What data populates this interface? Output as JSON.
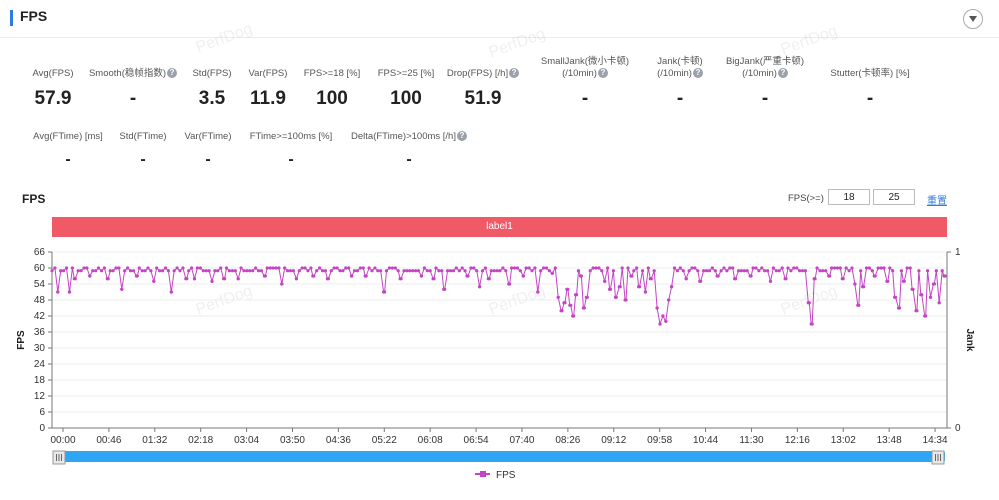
{
  "header": {
    "title": "FPS"
  },
  "stats_row1": [
    {
      "label": "Avg(FPS)",
      "value": "57.9",
      "help": false
    },
    {
      "label": "Smooth(稳帧指数)",
      "value": "-",
      "help": true
    },
    {
      "label": "Std(FPS)",
      "value": "3.5",
      "help": false
    },
    {
      "label": "Var(FPS)",
      "value": "11.9",
      "help": false
    },
    {
      "label": "FPS>=18 [%]",
      "value": "100",
      "help": false
    },
    {
      "label": "FPS>=25 [%]",
      "value": "100",
      "help": false
    },
    {
      "label": "Drop(FPS) [/h]",
      "value": "51.9",
      "help": true
    },
    {
      "label": "SmallJank(微小卡顿)",
      "label2": "(/10min)",
      "value": "-",
      "help": true
    },
    {
      "label": "Jank(卡顿)",
      "label2": "(/10min)",
      "value": "-",
      "help": true
    },
    {
      "label": "BigJank(严重卡顿)",
      "label2": "(/10min)",
      "value": "-",
      "help": true
    },
    {
      "label": "Stutter(卡顿率) [%]",
      "value": "-",
      "help": false
    }
  ],
  "stats_row2": [
    {
      "label": "Avg(FTime) [ms]",
      "value": "-",
      "help": false
    },
    {
      "label": "Std(FTime)",
      "value": "-",
      "help": false
    },
    {
      "label": "Var(FTime)",
      "value": "-",
      "help": false
    },
    {
      "label": "FTime>=100ms [%]",
      "value": "-",
      "help": false
    },
    {
      "label": "Delta(FTime)>100ms [/h]",
      "value": "-",
      "help": true
    }
  ],
  "chart_section": {
    "title": "FPS",
    "filter_label": "FPS(>=)",
    "filter_value_1": "18",
    "filter_value_2": "25",
    "reset_label": "重置",
    "label_bar": "label1"
  },
  "watermark": "PerfDog",
  "chart_data": {
    "type": "line",
    "title": "FPS",
    "ylabel": "FPS",
    "y2label": "Jank",
    "ylim": [
      0,
      66
    ],
    "yticks": [
      0,
      6,
      12,
      18,
      24,
      30,
      36,
      42,
      48,
      54,
      60,
      66
    ],
    "y2lim": [
      0,
      1
    ],
    "y2ticks": [
      0,
      1
    ],
    "xlim_seconds": [
      0,
      923
    ],
    "xticks": [
      "00:00",
      "00:46",
      "01:32",
      "02:18",
      "03:04",
      "03:50",
      "04:36",
      "05:22",
      "06:08",
      "06:54",
      "07:40",
      "08:26",
      "09:12",
      "09:58",
      "10:44",
      "11:30",
      "12:16",
      "13:02",
      "13:48",
      "14:34"
    ],
    "legend": [
      "FPS"
    ],
    "series_color": "#c444c4",
    "baseline": 59,
    "dips": [
      {
        "t": 6,
        "fps": 51
      },
      {
        "t": 18,
        "fps": 51
      },
      {
        "t": 23,
        "fps": 56
      },
      {
        "t": 39,
        "fps": 57
      },
      {
        "t": 58,
        "fps": 56
      },
      {
        "t": 72,
        "fps": 52
      },
      {
        "t": 88,
        "fps": 57
      },
      {
        "t": 105,
        "fps": 55
      },
      {
        "t": 123,
        "fps": 51
      },
      {
        "t": 139,
        "fps": 56
      },
      {
        "t": 147,
        "fps": 56
      },
      {
        "t": 165,
        "fps": 55
      },
      {
        "t": 178,
        "fps": 56
      },
      {
        "t": 192,
        "fps": 56
      },
      {
        "t": 220,
        "fps": 57
      },
      {
        "t": 237,
        "fps": 54
      },
      {
        "t": 252,
        "fps": 56
      },
      {
        "t": 269,
        "fps": 57
      },
      {
        "t": 284,
        "fps": 56
      },
      {
        "t": 309,
        "fps": 57
      },
      {
        "t": 323,
        "fps": 57
      },
      {
        "t": 343,
        "fps": 51
      },
      {
        "t": 359,
        "fps": 56
      },
      {
        "t": 381,
        "fps": 57
      },
      {
        "t": 394,
        "fps": 56
      },
      {
        "t": 404,
        "fps": 52
      },
      {
        "t": 428,
        "fps": 57
      },
      {
        "t": 441,
        "fps": 53
      },
      {
        "t": 451,
        "fps": 56
      },
      {
        "t": 472,
        "fps": 54
      },
      {
        "t": 486,
        "fps": 57
      },
      {
        "t": 501,
        "fps": 51
      },
      {
        "t": 516,
        "fps": 58
      },
      {
        "t": 522,
        "fps": 49
      },
      {
        "t": 526,
        "fps": 44
      },
      {
        "t": 529,
        "fps": 47
      },
      {
        "t": 532,
        "fps": 52
      },
      {
        "t": 535,
        "fps": 46
      },
      {
        "t": 538,
        "fps": 42
      },
      {
        "t": 541,
        "fps": 50
      },
      {
        "t": 545,
        "fps": 57
      },
      {
        "t": 548,
        "fps": 45
      },
      {
        "t": 551,
        "fps": 49
      },
      {
        "t": 570,
        "fps": 55
      },
      {
        "t": 575,
        "fps": 52
      },
      {
        "t": 581,
        "fps": 49
      },
      {
        "t": 586,
        "fps": 53
      },
      {
        "t": 592,
        "fps": 48
      },
      {
        "t": 598,
        "fps": 57
      },
      {
        "t": 605,
        "fps": 53
      },
      {
        "t": 612,
        "fps": 51
      },
      {
        "t": 617,
        "fps": 56
      },
      {
        "t": 624,
        "fps": 45
      },
      {
        "t": 627,
        "fps": 39
      },
      {
        "t": 630,
        "fps": 42
      },
      {
        "t": 633,
        "fps": 40
      },
      {
        "t": 636,
        "fps": 48
      },
      {
        "t": 639,
        "fps": 53
      },
      {
        "t": 654,
        "fps": 56
      },
      {
        "t": 668,
        "fps": 55
      },
      {
        "t": 686,
        "fps": 57
      },
      {
        "t": 704,
        "fps": 56
      },
      {
        "t": 721,
        "fps": 57
      },
      {
        "t": 741,
        "fps": 55
      },
      {
        "t": 757,
        "fps": 56
      },
      {
        "t": 781,
        "fps": 47
      },
      {
        "t": 784,
        "fps": 39
      },
      {
        "t": 787,
        "fps": 56
      },
      {
        "t": 802,
        "fps": 57
      },
      {
        "t": 815,
        "fps": 56
      },
      {
        "t": 828,
        "fps": 54
      },
      {
        "t": 832,
        "fps": 46
      },
      {
        "t": 836,
        "fps": 53
      },
      {
        "t": 848,
        "fps": 57
      },
      {
        "t": 862,
        "fps": 55
      },
      {
        "t": 869,
        "fps": 49
      },
      {
        "t": 874,
        "fps": 45
      },
      {
        "t": 878,
        "fps": 55
      },
      {
        "t": 887,
        "fps": 52
      },
      {
        "t": 892,
        "fps": 44
      },
      {
        "t": 896,
        "fps": 50
      },
      {
        "t": 901,
        "fps": 42
      },
      {
        "t": 906,
        "fps": 49
      },
      {
        "t": 910,
        "fps": 54
      },
      {
        "t": 915,
        "fps": 47
      },
      {
        "t": 920,
        "fps": 57
      }
    ]
  }
}
